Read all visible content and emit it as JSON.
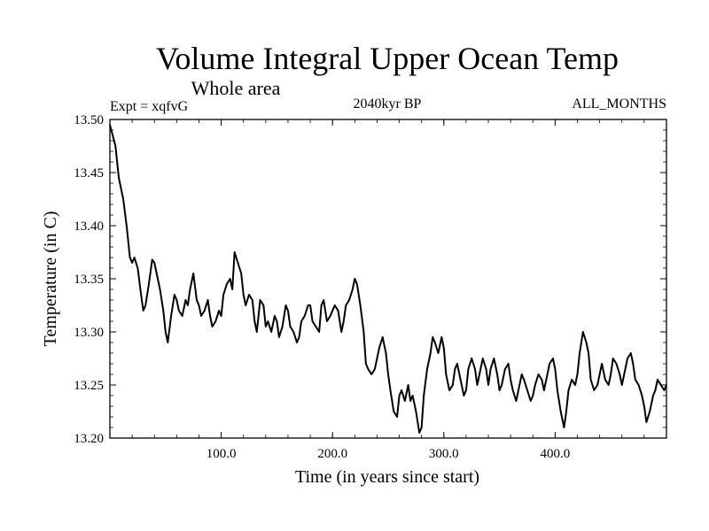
{
  "chart_data": {
    "type": "line",
    "title": "Volume Integral Upper Ocean Temp",
    "subtitle": "Whole area",
    "annotations": {
      "left": "Expt = xqfvG",
      "center": "2040kyr BP",
      "right": "ALL_MONTHS"
    },
    "xlabel": "Time (in years since start)",
    "ylabel": "Temperature (in C)",
    "xlim": [
      0,
      500
    ],
    "ylim": [
      13.2,
      13.5
    ],
    "xticks": [
      100,
      200,
      300,
      400
    ],
    "xtick_labels": [
      "100.0",
      "200.0",
      "300.0",
      "400.0"
    ],
    "yticks": [
      13.2,
      13.25,
      13.3,
      13.35,
      13.4,
      13.45,
      13.5
    ],
    "ytick_labels": [
      "13.20",
      "13.25",
      "13.30",
      "13.35",
      "13.40",
      "13.45",
      "13.50"
    ],
    "grid": false,
    "series": [
      {
        "name": "Temperature",
        "color": "#000000",
        "x": [
          0,
          5,
          8,
          10,
          12,
          15,
          18,
          20,
          22,
          25,
          28,
          30,
          32,
          35,
          38,
          40,
          42,
          45,
          48,
          50,
          52,
          55,
          58,
          60,
          62,
          65,
          68,
          70,
          72,
          75,
          78,
          80,
          82,
          85,
          88,
          90,
          92,
          95,
          98,
          100,
          102,
          105,
          108,
          110,
          112,
          115,
          118,
          120,
          122,
          125,
          128,
          130,
          132,
          135,
          138,
          140,
          142,
          145,
          148,
          150,
          152,
          155,
          158,
          160,
          162,
          165,
          168,
          170,
          172,
          175,
          178,
          180,
          182,
          185,
          188,
          190,
          192,
          195,
          198,
          200,
          202,
          205,
          208,
          210,
          212,
          215,
          218,
          220,
          222,
          225,
          228,
          230,
          232,
          235,
          238,
          240,
          242,
          245,
          248,
          250,
          252,
          255,
          258,
          260,
          262,
          265,
          268,
          270,
          272,
          275,
          278,
          280,
          282,
          285,
          288,
          290,
          292,
          295,
          298,
          300,
          302,
          305,
          308,
          310,
          312,
          315,
          318,
          320,
          322,
          325,
          328,
          330,
          332,
          335,
          338,
          340,
          342,
          345,
          348,
          350,
          352,
          355,
          358,
          360,
          362,
          365,
          368,
          370,
          372,
          375,
          378,
          380,
          382,
          385,
          388,
          390,
          392,
          395,
          398,
          400,
          402,
          405,
          408,
          410,
          412,
          415,
          418,
          420,
          422,
          425,
          428,
          430,
          432,
          435,
          438,
          440,
          442,
          445,
          448,
          450,
          452,
          455,
          458,
          460,
          462,
          465,
          468,
          470,
          472,
          475,
          478,
          480,
          482,
          485,
          488,
          490,
          492,
          495,
          498,
          500
        ],
        "values": [
          13.495,
          13.475,
          13.445,
          13.435,
          13.425,
          13.4,
          13.37,
          13.365,
          13.37,
          13.36,
          13.335,
          13.32,
          13.325,
          13.345,
          13.368,
          13.365,
          13.355,
          13.34,
          13.32,
          13.3,
          13.29,
          13.315,
          13.335,
          13.33,
          13.32,
          13.315,
          13.33,
          13.325,
          13.34,
          13.355,
          13.33,
          13.325,
          13.315,
          13.32,
          13.33,
          13.315,
          13.305,
          13.31,
          13.32,
          13.315,
          13.335,
          13.345,
          13.35,
          13.34,
          13.375,
          13.365,
          13.355,
          13.335,
          13.325,
          13.335,
          13.33,
          13.31,
          13.3,
          13.33,
          13.325,
          13.305,
          13.31,
          13.3,
          13.315,
          13.31,
          13.295,
          13.305,
          13.325,
          13.32,
          13.305,
          13.3,
          13.29,
          13.295,
          13.31,
          13.315,
          13.325,
          13.325,
          13.31,
          13.305,
          13.3,
          13.325,
          13.33,
          13.31,
          13.315,
          13.32,
          13.325,
          13.32,
          13.3,
          13.31,
          13.325,
          13.33,
          13.34,
          13.35,
          13.345,
          13.325,
          13.3,
          13.27,
          13.265,
          13.26,
          13.265,
          13.275,
          13.285,
          13.295,
          13.28,
          13.26,
          13.245,
          13.225,
          13.22,
          13.24,
          13.245,
          13.235,
          13.25,
          13.235,
          13.24,
          13.225,
          13.205,
          13.21,
          13.24,
          13.265,
          13.28,
          13.295,
          13.29,
          13.28,
          13.295,
          13.285,
          13.26,
          13.245,
          13.25,
          13.265,
          13.27,
          13.255,
          13.24,
          13.245,
          13.265,
          13.275,
          13.265,
          13.25,
          13.26,
          13.275,
          13.265,
          13.25,
          13.265,
          13.275,
          13.26,
          13.245,
          13.25,
          13.265,
          13.27,
          13.255,
          13.245,
          13.235,
          13.25,
          13.26,
          13.255,
          13.245,
          13.235,
          13.24,
          13.25,
          13.26,
          13.255,
          13.245,
          13.255,
          13.27,
          13.275,
          13.265,
          13.245,
          13.225,
          13.21,
          13.225,
          13.245,
          13.255,
          13.25,
          13.26,
          13.28,
          13.3,
          13.29,
          13.28,
          13.255,
          13.245,
          13.25,
          13.26,
          13.27,
          13.255,
          13.25,
          13.26,
          13.275,
          13.27,
          13.26,
          13.25,
          13.26,
          13.275,
          13.28,
          13.27,
          13.255,
          13.25,
          13.24,
          13.23,
          13.215,
          13.225,
          13.24,
          13.245,
          13.255,
          13.25,
          13.245,
          13.25
        ]
      }
    ]
  }
}
